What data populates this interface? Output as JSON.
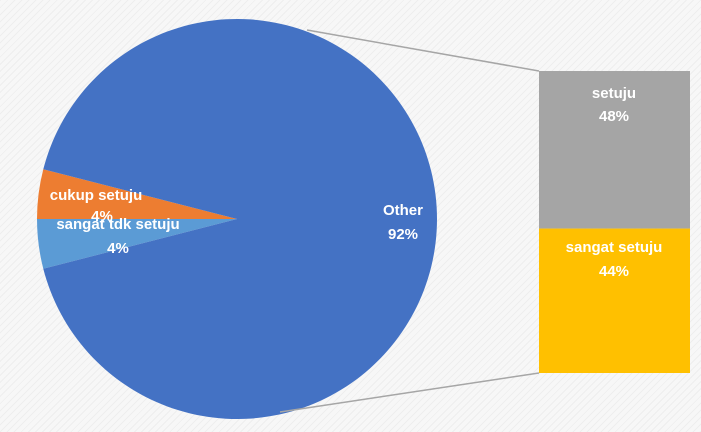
{
  "chart_data": {
    "type": "bar-of-pie",
    "pie": {
      "slices": [
        {
          "label": "Other",
          "value": 92,
          "value_label": "92%",
          "color": "#4472c4"
        },
        {
          "label": "cukup setuju",
          "value": 4,
          "value_label": "4%",
          "color": "#ed7d31"
        },
        {
          "label": "sangat tdk setuju",
          "value": 4,
          "value_label": "4%",
          "color": "#5b9bd5"
        }
      ]
    },
    "bar": {
      "segments": [
        {
          "label": "setuju",
          "value": 48,
          "value_label": "48%",
          "color": "#a5a5a5"
        },
        {
          "label": "sangat setuju",
          "value": 44,
          "value_label": "44%",
          "color": "#ffc000"
        }
      ]
    },
    "connector_color": "#a6a6a6"
  }
}
